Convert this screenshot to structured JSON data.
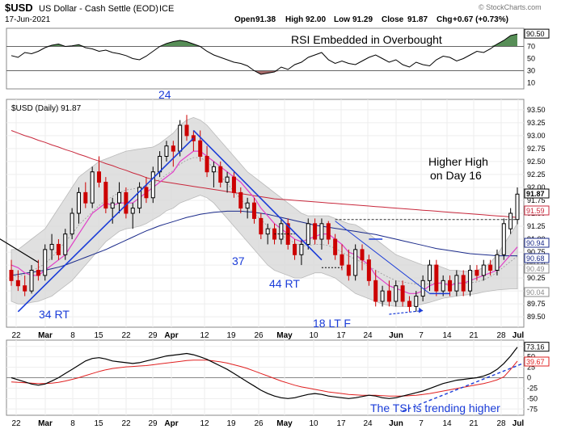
{
  "header": {
    "symbol": "$USD",
    "name": "US Dollar - Cash Settle (EOD)",
    "exchange": "ICE",
    "date": "17-Jun-2021",
    "open_label": "Open",
    "open": "91.38",
    "high_label": "High",
    "high": "92.00",
    "low_label": "Low",
    "low": "91.29",
    "close_label": "Close",
    "close": "91.87",
    "chg_label": "Chg",
    "chg": "+0.67 (+0.73%)",
    "watermark": "© StockCharts.com"
  },
  "colors": {
    "up": "#000000",
    "down": "#cc0000",
    "blue": "#1a3cd8",
    "bollinger": "#d9d9d9",
    "ma_red": "#c8283c",
    "ma_navy": "#1a2a8a",
    "ma_pink": "#e040c8",
    "rsi_green": "#3a7a3a",
    "rsi_brown": "#8a3a3a",
    "tsi_signal": "#e02020"
  },
  "chart_data": [
    {
      "type": "line",
      "panel": "RSI",
      "annotation": "RSI Embedded in Overbought",
      "y_ticks": [
        10,
        30,
        50,
        70,
        90
      ],
      "levels": [
        30,
        70
      ],
      "last_value": "90.50",
      "ylim": [
        0,
        100
      ],
      "values": [
        55,
        52,
        60,
        58,
        62,
        68,
        72,
        74,
        70,
        71,
        73,
        68,
        66,
        62,
        64,
        60,
        58,
        55,
        50,
        48,
        54,
        62,
        70,
        75,
        78,
        80,
        78,
        74,
        70,
        62,
        56,
        52,
        48,
        44,
        42,
        38,
        30,
        24,
        26,
        28,
        36,
        32,
        40,
        44,
        52,
        56,
        60,
        48,
        42,
        46,
        42,
        40,
        46,
        52,
        56,
        50,
        44,
        48,
        40,
        36,
        44,
        40,
        38,
        48,
        54,
        52,
        46,
        50,
        56,
        62,
        60,
        66,
        74,
        80,
        88,
        90.5
      ]
    },
    {
      "type": "candlestick",
      "panel": "Price",
      "title": "$USD (Daily) 91.87",
      "ylim": [
        89.3,
        93.7
      ],
      "y_ticks": [
        "89.50",
        "89.75",
        "90.00",
        "90.25",
        "90.50",
        "90.75",
        "91.00",
        "91.25",
        "91.50",
        "91.75",
        "92.00",
        "92.25",
        "92.50",
        "92.75",
        "93.00",
        "93.25",
        "93.50"
      ],
      "price_tags": [
        "91.87",
        "91.59",
        "90.94",
        "90.68",
        "90.49",
        "90.04"
      ],
      "x_tick_labels": [
        "22",
        "Mar",
        "8",
        "15",
        "22",
        "29",
        "Apr",
        "12",
        "19",
        "26",
        "May",
        "10",
        "17",
        "24",
        "Jun",
        "7",
        "14",
        "21",
        "28",
        "Jul"
      ],
      "candles": [
        [
          90.4,
          90.6,
          90.1,
          90.2
        ],
        [
          90.2,
          90.4,
          90.0,
          90.1
        ],
        [
          90.1,
          90.3,
          89.9,
          90.0
        ],
        [
          90.0,
          90.5,
          89.95,
          90.4
        ],
        [
          90.4,
          90.6,
          90.2,
          90.3
        ],
        [
          90.3,
          90.9,
          90.2,
          90.8
        ],
        [
          90.8,
          91.1,
          90.6,
          90.9
        ],
        [
          90.9,
          91.0,
          90.6,
          90.7
        ],
        [
          90.7,
          91.2,
          90.6,
          91.1
        ],
        [
          91.1,
          91.6,
          91.0,
          91.5
        ],
        [
          91.5,
          92.0,
          91.3,
          91.9
        ],
        [
          91.9,
          92.1,
          91.6,
          91.7
        ],
        [
          91.7,
          92.4,
          91.6,
          92.3
        ],
        [
          92.3,
          92.6,
          92.0,
          92.1
        ],
        [
          92.1,
          92.2,
          91.5,
          91.6
        ],
        [
          91.6,
          91.8,
          91.3,
          91.7
        ],
        [
          91.7,
          92.1,
          91.5,
          91.9
        ],
        [
          91.9,
          92.0,
          91.4,
          91.5
        ],
        [
          91.5,
          91.7,
          91.2,
          91.6
        ],
        [
          91.6,
          92.1,
          91.5,
          92.0
        ],
        [
          92.0,
          92.2,
          91.7,
          91.8
        ],
        [
          91.8,
          92.4,
          91.7,
          92.3
        ],
        [
          92.3,
          92.7,
          92.2,
          92.6
        ],
        [
          92.6,
          92.9,
          92.5,
          92.8
        ],
        [
          92.8,
          92.9,
          92.4,
          92.7
        ],
        [
          92.7,
          93.3,
          92.6,
          93.2
        ],
        [
          93.2,
          93.4,
          92.9,
          93.0
        ],
        [
          93.0,
          93.1,
          92.7,
          92.9
        ],
        [
          92.9,
          93.1,
          92.5,
          92.6
        ],
        [
          92.6,
          92.8,
          92.2,
          92.3
        ],
        [
          92.3,
          92.5,
          92.0,
          92.4
        ],
        [
          92.4,
          92.5,
          92.0,
          92.1
        ],
        [
          92.1,
          92.3,
          91.9,
          92.2
        ],
        [
          92.2,
          92.3,
          91.8,
          91.9
        ],
        [
          91.9,
          92.0,
          91.5,
          91.6
        ],
        [
          91.6,
          91.8,
          91.4,
          91.7
        ],
        [
          91.7,
          91.8,
          91.3,
          91.4
        ],
        [
          91.4,
          91.5,
          91.0,
          91.1
        ],
        [
          91.1,
          91.3,
          90.9,
          91.2
        ],
        [
          91.2,
          91.3,
          90.9,
          91.0
        ],
        [
          91.0,
          91.4,
          90.9,
          91.3
        ],
        [
          91.3,
          91.4,
          90.8,
          90.9
        ],
        [
          90.9,
          91.0,
          90.6,
          90.7
        ],
        [
          90.7,
          91.0,
          90.5,
          90.9
        ],
        [
          90.9,
          91.4,
          90.8,
          91.3
        ],
        [
          91.3,
          91.4,
          90.9,
          91.0
        ],
        [
          91.0,
          91.4,
          90.8,
          91.3
        ],
        [
          91.3,
          91.35,
          90.9,
          91.0
        ],
        [
          91.0,
          91.1,
          90.6,
          90.7
        ],
        [
          90.7,
          90.9,
          90.4,
          90.5
        ],
        [
          90.5,
          90.8,
          90.2,
          90.3
        ],
        [
          90.3,
          90.9,
          90.2,
          90.8
        ],
        [
          90.8,
          90.9,
          90.4,
          90.6
        ],
        [
          90.6,
          90.7,
          90.1,
          90.2
        ],
        [
          90.2,
          90.4,
          89.7,
          89.8
        ],
        [
          89.8,
          90.1,
          89.7,
          90.0
        ],
        [
          90.0,
          90.2,
          89.7,
          89.8
        ],
        [
          89.8,
          90.2,
          89.7,
          90.1
        ],
        [
          90.1,
          90.2,
          89.7,
          89.8
        ],
        [
          89.8,
          89.9,
          89.6,
          89.7
        ],
        [
          89.7,
          90.0,
          89.6,
          89.9
        ],
        [
          89.9,
          90.3,
          89.8,
          90.2
        ],
        [
          90.2,
          90.6,
          90.0,
          90.5
        ],
        [
          90.5,
          90.6,
          89.9,
          90.0
        ],
        [
          90.0,
          90.3,
          89.9,
          90.2
        ],
        [
          90.2,
          90.3,
          89.9,
          90.0
        ],
        [
          90.0,
          90.4,
          89.9,
          90.3
        ],
        [
          90.3,
          90.4,
          89.9,
          90.0
        ],
        [
          90.0,
          90.5,
          89.9,
          90.4
        ],
        [
          90.4,
          90.5,
          90.2,
          90.3
        ],
        [
          90.3,
          90.6,
          90.2,
          90.5
        ],
        [
          90.5,
          90.6,
          90.3,
          90.4
        ],
        [
          90.4,
          90.8,
          90.3,
          90.7
        ],
        [
          90.7,
          91.4,
          90.6,
          91.3
        ],
        [
          91.2,
          91.6,
          91.1,
          91.5
        ],
        [
          91.38,
          92.0,
          91.29,
          91.87
        ]
      ],
      "ma_red": [
        93.1,
        93.05,
        93.0,
        92.96,
        92.91,
        92.87,
        92.82,
        92.78,
        92.73,
        92.69,
        92.64,
        92.6,
        92.55,
        92.51,
        92.46,
        92.42,
        92.37,
        92.33,
        92.28,
        92.24,
        92.19,
        92.15,
        92.12,
        92.1,
        92.08,
        92.06,
        92.04,
        92.02,
        92.0,
        91.98,
        91.96,
        91.94,
        91.92,
        91.9,
        91.88,
        91.86,
        91.84,
        91.82,
        91.8,
        91.78,
        91.77,
        91.76,
        91.75,
        91.74,
        91.73,
        91.72,
        91.71,
        91.7,
        91.69,
        91.68,
        91.67,
        91.66,
        91.65,
        91.64,
        91.63,
        91.62,
        91.61,
        91.6,
        91.59,
        91.58,
        91.57,
        91.56,
        91.55,
        91.54,
        91.53,
        91.52,
        91.51,
        91.5,
        91.49,
        91.48,
        91.47,
        91.46,
        91.45,
        91.44,
        91.43,
        91.42
      ],
      "ma_navy": [
        90.3,
        90.32,
        90.34,
        90.36,
        90.38,
        90.4,
        90.43,
        90.46,
        90.5,
        90.55,
        90.6,
        90.65,
        90.7,
        90.75,
        90.8,
        90.86,
        90.92,
        90.98,
        91.04,
        91.1,
        91.16,
        91.21,
        91.26,
        91.3,
        91.34,
        91.38,
        91.42,
        91.45,
        91.48,
        91.5,
        91.52,
        91.53,
        91.54,
        91.54,
        91.54,
        91.53,
        91.52,
        91.5,
        91.48,
        91.45,
        91.42,
        91.39,
        91.36,
        91.33,
        91.3,
        91.27,
        91.25,
        91.23,
        91.21,
        91.19,
        91.17,
        91.15,
        91.13,
        91.11,
        91.09,
        91.06,
        91.03,
        91.0,
        90.97,
        90.94,
        90.91,
        90.88,
        90.85,
        90.82,
        90.8,
        90.78,
        90.76,
        90.74,
        90.72,
        90.71,
        90.7,
        90.69,
        90.68,
        90.68,
        90.68,
        90.68
      ],
      "ma_pink": [
        90.5,
        90.45,
        90.35,
        90.3,
        90.3,
        90.4,
        90.5,
        90.6,
        90.7,
        90.9,
        91.1,
        91.3,
        91.5,
        91.6,
        91.7,
        91.65,
        91.7,
        91.7,
        91.7,
        91.8,
        91.9,
        92.0,
        92.1,
        92.2,
        92.3,
        92.5,
        92.6,
        92.7,
        92.7,
        92.6,
        92.5,
        92.4,
        92.3,
        92.2,
        92.1,
        91.95,
        91.8,
        91.6,
        91.45,
        91.3,
        91.2,
        91.1,
        91.0,
        90.95,
        91.0,
        91.05,
        91.1,
        91.1,
        91.0,
        90.9,
        90.75,
        90.7,
        90.6,
        90.5,
        90.3,
        90.2,
        90.1,
        90.05,
        90.0,
        89.95,
        89.95,
        90.0,
        90.1,
        90.15,
        90.15,
        90.1,
        90.15,
        90.15,
        90.2,
        90.25,
        90.3,
        90.35,
        90.4,
        90.55,
        90.7,
        90.85
      ],
      "bb_upper": [
        90.8,
        90.8,
        90.9,
        91.0,
        91.1,
        91.2,
        91.4,
        91.6,
        91.8,
        92.0,
        92.2,
        92.3,
        92.4,
        92.5,
        92.55,
        92.6,
        92.65,
        92.7,
        92.72,
        92.74,
        92.76,
        92.78,
        92.85,
        92.95,
        93.05,
        93.2,
        93.3,
        93.35,
        93.3,
        93.2,
        93.05,
        92.9,
        92.75,
        92.6,
        92.45,
        92.3,
        92.2,
        92.1,
        92.0,
        91.9,
        91.8,
        91.7,
        91.6,
        91.5,
        91.45,
        91.45,
        91.45,
        91.45,
        91.4,
        91.35,
        91.3,
        91.28,
        91.2,
        91.1,
        91.0,
        90.9,
        90.8,
        90.7,
        90.65,
        90.6,
        90.55,
        90.5,
        90.5,
        90.5,
        90.45,
        90.4,
        90.4,
        90.38,
        90.38,
        90.4,
        90.45,
        90.55,
        90.7,
        90.9,
        91.1,
        91.3
      ],
      "bb_lower": [
        89.8,
        89.75,
        89.75,
        89.78,
        89.8,
        89.85,
        89.9,
        90.0,
        90.1,
        90.2,
        90.35,
        90.5,
        90.65,
        90.8,
        90.95,
        91.05,
        91.15,
        91.2,
        91.22,
        91.25,
        91.3,
        91.38,
        91.45,
        91.55,
        91.6,
        91.7,
        91.75,
        91.8,
        91.85,
        91.8,
        91.7,
        91.55,
        91.4,
        91.25,
        91.1,
        90.95,
        90.8,
        90.65,
        90.5,
        90.4,
        90.35,
        90.3,
        90.25,
        90.25,
        90.3,
        90.35,
        90.35,
        90.3,
        90.25,
        90.15,
        90.05,
        89.95,
        89.9,
        89.85,
        89.8,
        89.75,
        89.72,
        89.7,
        89.7,
        89.7,
        89.72,
        89.75,
        89.78,
        89.82,
        89.86,
        89.88,
        89.9,
        89.92,
        89.93,
        89.95,
        89.98,
        90.0,
        90.02,
        90.03,
        90.04,
        90.04
      ],
      "annotations": [
        "24",
        "34 RT",
        "37",
        "44 RT",
        "18 LT F",
        "Higher High",
        "on Day 16"
      ]
    },
    {
      "type": "line",
      "panel": "TSI",
      "y_ticks": [
        -75,
        -50,
        -25,
        0,
        25,
        50,
        75
      ],
      "tsi_last": "73.16",
      "signal_last": "39.67",
      "ylim": [
        -90,
        90
      ],
      "annotation": "The TSI is trending higher",
      "x_tick_labels": [
        "22",
        "Mar",
        "8",
        "15",
        "22",
        "29",
        "Apr",
        "12",
        "19",
        "26",
        "May",
        "10",
        "17",
        "24",
        "Jun",
        "7",
        "14",
        "21",
        "28",
        "Jul"
      ],
      "tsi": [
        0,
        -5,
        -10,
        -15,
        -18,
        -15,
        -8,
        0,
        10,
        20,
        30,
        40,
        46,
        48,
        45,
        40,
        38,
        36,
        34,
        36,
        40,
        44,
        48,
        52,
        54,
        56,
        58,
        55,
        50,
        44,
        36,
        28,
        20,
        10,
        0,
        -10,
        -20,
        -30,
        -38,
        -44,
        -48,
        -50,
        -48,
        -44,
        -40,
        -38,
        -40,
        -44,
        -46,
        -48,
        -50,
        -48,
        -45,
        -42,
        -44,
        -48,
        -50,
        -48,
        -44,
        -40,
        -36,
        -32,
        -26,
        -20,
        -14,
        -10,
        -6,
        -4,
        -2,
        0,
        4,
        10,
        20,
        34,
        52,
        73.16
      ],
      "signal": [
        -10,
        -11,
        -12,
        -13,
        -14,
        -14,
        -13,
        -11,
        -8,
        -4,
        0,
        5,
        10,
        15,
        19,
        22,
        24,
        26,
        27,
        28,
        29,
        31,
        33,
        35,
        37,
        39,
        41,
        42,
        42,
        42,
        40,
        38,
        35,
        31,
        27,
        22,
        16,
        10,
        4,
        -2,
        -8,
        -13,
        -18,
        -22,
        -25,
        -28,
        -31,
        -34,
        -36,
        -38,
        -40,
        -41,
        -42,
        -42,
        -42,
        -43,
        -44,
        -44,
        -44,
        -43,
        -42,
        -40,
        -38,
        -35,
        -32,
        -29,
        -26,
        -23,
        -20,
        -17,
        -14,
        -10,
        -5,
        2,
        20,
        39.67
      ]
    }
  ]
}
